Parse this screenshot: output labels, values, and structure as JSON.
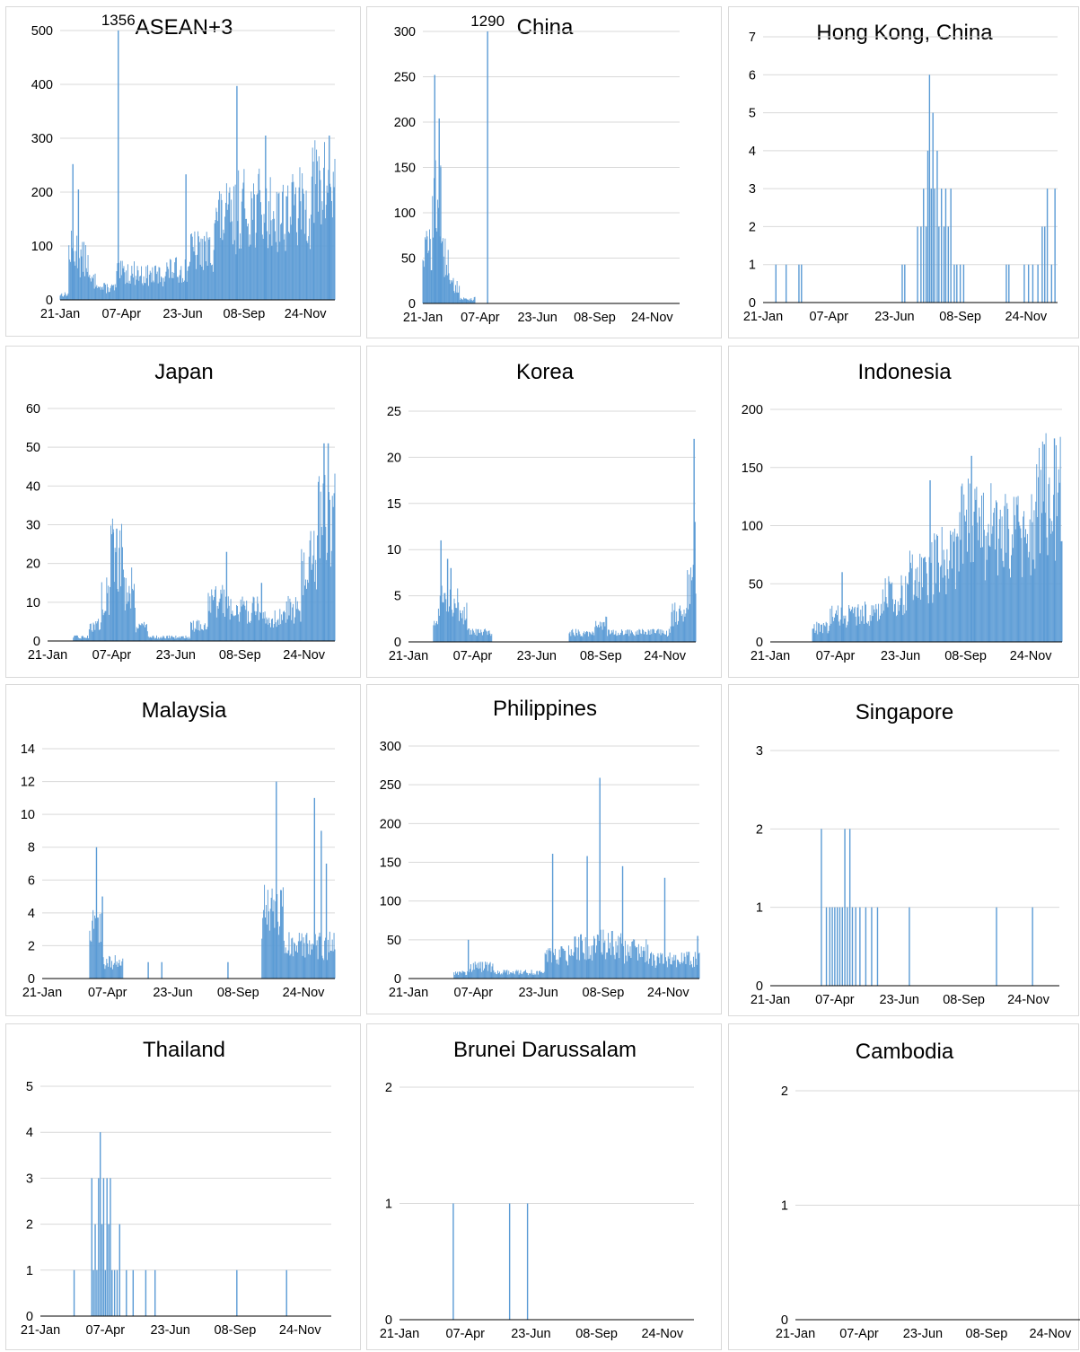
{
  "figure": {
    "bar_color": "#5b9bd5",
    "x_tick_labels": [
      "21-Jan",
      "07-Apr",
      "23-Jun",
      "08-Sep",
      "24-Nov"
    ]
  },
  "chart_data": [
    {
      "type": "bar",
      "title": "ASEAN+3",
      "x_range": [
        "21-Jan",
        "31-Dec"
      ],
      "ylim": [
        0,
        500
      ],
      "yticks": [
        0,
        100,
        200,
        300,
        400,
        500
      ],
      "annotations": [
        {
          "label": "1356",
          "x": "03-Apr",
          "note": "bar truncated at axis max"
        }
      ],
      "segments": [
        {
          "from": "21-Jan",
          "to": "31-Jan",
          "level": 10
        },
        {
          "from": "01-Feb",
          "to": "12-Feb",
          "level": 90
        },
        {
          "from": "13-Feb",
          "to": "25-Feb",
          "level": 75
        },
        {
          "from": "26-Feb",
          "to": "10-Mar",
          "level": 35
        },
        {
          "from": "11-Mar",
          "to": "31-Mar",
          "level": 22
        },
        {
          "from": "01-Apr",
          "to": "30-Apr",
          "level": 50
        },
        {
          "from": "01-May",
          "to": "31-May",
          "level": 45
        },
        {
          "from": "01-Jun",
          "to": "30-Jun",
          "level": 55
        },
        {
          "from": "01-Jul",
          "to": "31-Jul",
          "level": 90
        },
        {
          "from": "01-Aug",
          "to": "31-Aug",
          "level": 150
        },
        {
          "from": "01-Sep",
          "to": "30-Sep",
          "level": 170
        },
        {
          "from": "01-Oct",
          "to": "31-Oct",
          "level": 160
        },
        {
          "from": "01-Nov",
          "to": "30Nov",
          "level": 170
        },
        {
          "from": "01-Dec",
          "to": "31-Dec",
          "level": 210
        }
      ],
      "spikes": [
        {
          "x": "06-Feb",
          "y": 252
        },
        {
          "x": "13-Feb",
          "y": 205
        },
        {
          "x": "03-Apr",
          "y": 500
        },
        {
          "x": "27-Jun",
          "y": 233
        },
        {
          "x": "30-Aug",
          "y": 397
        },
        {
          "x": "05-Oct",
          "y": 305
        },
        {
          "x": "24-Dec",
          "y": 305
        }
      ]
    },
    {
      "type": "bar",
      "title": "China",
      "x_range": [
        "21-Jan",
        "31-Dec"
      ],
      "ylim": [
        0,
        300
      ],
      "yticks": [
        0,
        50,
        100,
        150,
        200,
        250,
        300
      ],
      "annotations": [
        {
          "label": "1290",
          "x": "17-Apr",
          "note": "bar truncated at axis max"
        }
      ],
      "segments": [
        {
          "from": "21-Jan",
          "to": "02-Feb",
          "level": 60
        },
        {
          "from": "03-Feb",
          "to": "14-Feb",
          "level": 110
        },
        {
          "from": "15-Feb",
          "to": "25-Feb",
          "level": 50
        },
        {
          "from": "26-Feb",
          "to": "10-Mar",
          "level": 20
        },
        {
          "from": "11-Mar",
          "to": "31-Mar",
          "level": 5
        }
      ],
      "spikes": [
        {
          "x": "06-Feb",
          "y": 252
        },
        {
          "x": "12-Feb",
          "y": 204
        },
        {
          "x": "14-Feb",
          "y": 150
        },
        {
          "x": "17-Apr",
          "y": 300
        }
      ]
    },
    {
      "type": "bar",
      "title": "Hong Kong, China",
      "x_range": [
        "21-Jan",
        "31-Dec"
      ],
      "ylim": [
        0,
        7
      ],
      "yticks": [
        0,
        1,
        2,
        3,
        4,
        5,
        6,
        7
      ],
      "spikes": [
        {
          "x": "05-Feb",
          "y": 1
        },
        {
          "x": "17-Feb",
          "y": 1
        },
        {
          "x": "03-Mar",
          "y": 1
        },
        {
          "x": "06-Mar",
          "y": 1
        },
        {
          "x": "02-Jul",
          "y": 1
        },
        {
          "x": "05-Jul",
          "y": 1
        },
        {
          "x": "20-Jul",
          "y": 2
        },
        {
          "x": "24-Jul",
          "y": 2
        },
        {
          "x": "27-Jul",
          "y": 3
        },
        {
          "x": "30-Jul",
          "y": 2
        },
        {
          "x": "01-Aug",
          "y": 4
        },
        {
          "x": "03-Aug",
          "y": 6
        },
        {
          "x": "05-Aug",
          "y": 3
        },
        {
          "x": "07-Aug",
          "y": 5
        },
        {
          "x": "09-Aug",
          "y": 3
        },
        {
          "x": "12-Aug",
          "y": 4
        },
        {
          "x": "14-Aug",
          "y": 2
        },
        {
          "x": "17-Aug",
          "y": 3
        },
        {
          "x": "20-Aug",
          "y": 2
        },
        {
          "x": "22-Aug",
          "y": 3
        },
        {
          "x": "25-Aug",
          "y": 2
        },
        {
          "x": "28-Aug",
          "y": 3
        },
        {
          "x": "01-Sep",
          "y": 1
        },
        {
          "x": "04-Sep",
          "y": 1
        },
        {
          "x": "08-Sep",
          "y": 1
        },
        {
          "x": "12-Sep",
          "y": 1
        },
        {
          "x": "01-Nov",
          "y": 1
        },
        {
          "x": "04-Nov",
          "y": 1
        },
        {
          "x": "22-Nov",
          "y": 1
        },
        {
          "x": "27-Nov",
          "y": 1
        },
        {
          "x": "02-Dec",
          "y": 1
        },
        {
          "x": "08-Dec",
          "y": 1
        },
        {
          "x": "13-Dec",
          "y": 2
        },
        {
          "x": "16-Dec",
          "y": 2
        },
        {
          "x": "19-Dec",
          "y": 3
        },
        {
          "x": "24-Dec",
          "y": 1
        },
        {
          "x": "28-Dec",
          "y": 3
        }
      ]
    },
    {
      "type": "bar",
      "title": "Japan",
      "x_range": [
        "21-Jan",
        "31-Dec"
      ],
      "ylim": [
        0,
        60
      ],
      "yticks": [
        0,
        10,
        20,
        30,
        40,
        50,
        60
      ],
      "segments": [
        {
          "from": "21-Feb",
          "to": "10-Mar",
          "level": 1
        },
        {
          "from": "11-Mar",
          "to": "25-Mar",
          "level": 4
        },
        {
          "from": "26-Mar",
          "to": "05-Apr",
          "level": 12
        },
        {
          "from": "06-Apr",
          "to": "20-Apr",
          "level": 22
        },
        {
          "from": "21-Apr",
          "to": "05-May",
          "level": 14
        },
        {
          "from": "06-May",
          "to": "20-May",
          "level": 4
        },
        {
          "from": "21-May",
          "to": "20-Jun",
          "level": 1
        },
        {
          "from": "21-Jun",
          "to": "10-Jul",
          "level": 1
        },
        {
          "from": "11-Jul",
          "to": "31-Jul",
          "level": 4
        },
        {
          "from": "01-Aug",
          "to": "31-Aug",
          "level": 10
        },
        {
          "from": "01-Sep",
          "to": "30-Sep",
          "level": 8
        },
        {
          "from": "01-Oct",
          "to": "31-Oct",
          "level": 6
        },
        {
          "from": "01-Nov",
          "to": "20-Nov",
          "level": 8
        },
        {
          "from": "21-Nov",
          "to": "10-Dec",
          "level": 20
        },
        {
          "from": "11-Dec",
          "to": "31-Dec",
          "level": 30
        }
      ],
      "spikes": [
        {
          "x": "09-Apr",
          "y": 28
        },
        {
          "x": "13-Apr",
          "y": 29
        },
        {
          "x": "23-Aug",
          "y": 23
        },
        {
          "x": "04-Oct",
          "y": 15
        },
        {
          "x": "18-Dec",
          "y": 51
        },
        {
          "x": "23-Dec",
          "y": 51
        }
      ]
    },
    {
      "type": "bar",
      "title": "Korea",
      "x_range": [
        "21-Jan",
        "31-Dec"
      ],
      "ylim": [
        0,
        25
      ],
      "yticks": [
        0,
        5,
        10,
        15,
        20,
        25
      ],
      "segments": [
        {
          "from": "20-Feb",
          "to": "25-Feb",
          "level": 2
        },
        {
          "from": "26-Feb",
          "to": "20-Mar",
          "level": 5
        },
        {
          "from": "21-Mar",
          "to": "31-Mar",
          "level": 3
        },
        {
          "from": "01-Apr",
          "to": "30-Apr",
          "level": 1
        },
        {
          "from": "01-Aug",
          "to": "31-Aug",
          "level": 1
        },
        {
          "from": "01-Sep",
          "to": "15-Sep",
          "level": 2
        },
        {
          "from": "16-Sep",
          "to": "30-Nov",
          "level": 1
        },
        {
          "from": "01-Dec",
          "to": "20-Dec",
          "level": 3
        },
        {
          "from": "21-Dec",
          "to": "31-Dec",
          "level": 6
        }
      ],
      "spikes": [
        {
          "x": "29-Feb",
          "y": 11
        },
        {
          "x": "08-Mar",
          "y": 9
        },
        {
          "x": "12-Mar",
          "y": 8
        },
        {
          "x": "29-Dec",
          "y": 22
        },
        {
          "x": "30-Dec",
          "y": 13
        }
      ]
    },
    {
      "type": "bar",
      "title": "Indonesia",
      "x_range": [
        "21-Jan",
        "31-Dec"
      ],
      "ylim": [
        0,
        200
      ],
      "yticks": [
        0,
        50,
        100,
        150,
        200
      ],
      "segments": [
        {
          "from": "11-Mar",
          "to": "31-Mar",
          "level": 12
        },
        {
          "from": "01-Apr",
          "to": "30-Apr",
          "level": 22
        },
        {
          "from": "01-May",
          "to": "31-May",
          "level": 25
        },
        {
          "from": "01-Jun",
          "to": "30-Jun",
          "level": 40
        },
        {
          "from": "01-Jul",
          "to": "31-Jul",
          "level": 60
        },
        {
          "from": "01-Aug",
          "to": "31-Aug",
          "level": 70
        },
        {
          "from": "01-Sep",
          "to": "30-Sep",
          "level": 100
        },
        {
          "from": "01-Oct",
          "to": "31-Oct",
          "level": 95
        },
        {
          "from": "01-Nov",
          "to": "30-Nov",
          "level": 90
        },
        {
          "from": "01-Dec",
          "to": "31-Dec",
          "level": 125
        }
      ],
      "spikes": [
        {
          "x": "15-Apr",
          "y": 60
        },
        {
          "x": "28-Jul",
          "y": 139
        },
        {
          "x": "15-Sep",
          "y": 160
        },
        {
          "x": "10-Dec",
          "y": 170
        },
        {
          "x": "22-Dec",
          "y": 175
        }
      ]
    },
    {
      "type": "bar",
      "title": "Malaysia",
      "x_range": [
        "21-Jan",
        "31-Dec"
      ],
      "ylim": [
        0,
        14
      ],
      "yticks": [
        0,
        2,
        4,
        6,
        8,
        10,
        12,
        14
      ],
      "segments": [
        {
          "from": "17-Mar",
          "to": "31-Mar",
          "level": 3
        },
        {
          "from": "01-Apr",
          "to": "25-Apr",
          "level": 1
        },
        {
          "from": "06-Oct",
          "to": "31-Oct",
          "level": 4
        },
        {
          "from": "01-Nov",
          "to": "31-Dec",
          "level": 2
        }
      ],
      "spikes": [
        {
          "x": "25-Mar",
          "y": 8
        },
        {
          "x": "01-Apr",
          "y": 5
        },
        {
          "x": "23-Oct",
          "y": 12
        },
        {
          "x": "07-Dec",
          "y": 11
        },
        {
          "x": "15-Dec",
          "y": 9
        },
        {
          "x": "21-Dec",
          "y": 7
        },
        {
          "x": "25-May",
          "y": 1
        },
        {
          "x": "10-Jun",
          "y": 1
        },
        {
          "x": "27-Aug",
          "y": 1
        }
      ]
    },
    {
      "type": "bar",
      "title": "Philippines",
      "x_range": [
        "21-Jan",
        "31-Dec"
      ],
      "ylim": [
        0,
        300
      ],
      "yticks": [
        0,
        50,
        100,
        150,
        200,
        250,
        300
      ],
      "segments": [
        {
          "from": "15-Mar",
          "to": "31-Mar",
          "level": 8
        },
        {
          "from": "01-Apr",
          "to": "30-Apr",
          "level": 15
        },
        {
          "from": "01-May",
          "to": "30-Jun",
          "level": 8
        },
        {
          "from": "01-Jul",
          "to": "31-Jul",
          "level": 30
        },
        {
          "from": "01-Aug",
          "to": "31-Aug",
          "level": 40
        },
        {
          "from": "01-Sep",
          "to": "30-Sep",
          "level": 45
        },
        {
          "from": "01-Oct",
          "to": "31-Oct",
          "level": 35
        },
        {
          "from": "01-Nov",
          "to": "31-Dec",
          "level": 25
        }
      ],
      "spikes": [
        {
          "x": "01-Apr",
          "y": 50
        },
        {
          "x": "10-Jul",
          "y": 161
        },
        {
          "x": "04-Sep",
          "y": 259
        },
        {
          "x": "20-Aug",
          "y": 158
        },
        {
          "x": "01-Oct",
          "y": 145
        },
        {
          "x": "20-Nov",
          "y": 130
        },
        {
          "x": "29-Dec",
          "y": 55
        }
      ]
    },
    {
      "type": "bar",
      "title": "Singapore",
      "x_range": [
        "21-Jan",
        "31-Dec"
      ],
      "ylim": [
        0,
        3
      ],
      "yticks": [
        0,
        1,
        2,
        3
      ],
      "spikes": [
        {
          "x": "22-Mar",
          "y": 2
        },
        {
          "x": "28-Mar",
          "y": 1
        },
        {
          "x": "01-Apr",
          "y": 1
        },
        {
          "x": "04-Apr",
          "y": 1
        },
        {
          "x": "07-Apr",
          "y": 1
        },
        {
          "x": "10-Apr",
          "y": 1
        },
        {
          "x": "13-Apr",
          "y": 1
        },
        {
          "x": "16-Apr",
          "y": 1
        },
        {
          "x": "19-Apr",
          "y": 2
        },
        {
          "x": "22-Apr",
          "y": 1
        },
        {
          "x": "25-Apr",
          "y": 2
        },
        {
          "x": "28-Apr",
          "y": 1
        },
        {
          "x": "02-May",
          "y": 1
        },
        {
          "x": "07-May",
          "y": 1
        },
        {
          "x": "14-May",
          "y": 1
        },
        {
          "x": "21-May",
          "y": 1
        },
        {
          "x": "28-May",
          "y": 1
        },
        {
          "x": "05-Jul",
          "y": 1
        },
        {
          "x": "17-Oct",
          "y": 1
        },
        {
          "x": "29-Nov",
          "y": 1
        }
      ]
    },
    {
      "type": "bar",
      "title": "Thailand",
      "x_range": [
        "21-Jan",
        "31-Dec"
      ],
      "ylim": [
        0,
        5
      ],
      "yticks": [
        0,
        1,
        2,
        3,
        4,
        5
      ],
      "spikes": [
        {
          "x": "01-Mar",
          "y": 1
        },
        {
          "x": "22-Mar",
          "y": 3
        },
        {
          "x": "24-Mar",
          "y": 1
        },
        {
          "x": "26-Mar",
          "y": 2
        },
        {
          "x": "28-Mar",
          "y": 1
        },
        {
          "x": "30-Mar",
          "y": 3
        },
        {
          "x": "01-Apr",
          "y": 4
        },
        {
          "x": "03-Apr",
          "y": 2
        },
        {
          "x": "05-Apr",
          "y": 3
        },
        {
          "x": "07-Apr",
          "y": 1
        },
        {
          "x": "09-Apr",
          "y": 3
        },
        {
          "x": "11-Apr",
          "y": 2
        },
        {
          "x": "13-Apr",
          "y": 3
        },
        {
          "x": "15-Apr",
          "y": 1
        },
        {
          "x": "18-Apr",
          "y": 1
        },
        {
          "x": "21-Apr",
          "y": 1
        },
        {
          "x": "24-Apr",
          "y": 2
        },
        {
          "x": "02-May",
          "y": 1
        },
        {
          "x": "10-May",
          "y": 1
        },
        {
          "x": "25-May",
          "y": 1
        },
        {
          "x": "05-Jun",
          "y": 1
        },
        {
          "x": "10-Sep",
          "y": 1
        },
        {
          "x": "08-Nov",
          "y": 1
        }
      ]
    },
    {
      "type": "bar",
      "title": "Brunei Darussalam",
      "x_range": [
        "21-Jan",
        "31-Dec"
      ],
      "ylim": [
        0,
        2
      ],
      "yticks": [
        0,
        1,
        2
      ],
      "spikes": [
        {
          "x": "24-Mar",
          "y": 1
        },
        {
          "x": "29-May",
          "y": 1
        },
        {
          "x": "19-Jun",
          "y": 1
        }
      ]
    },
    {
      "type": "bar",
      "title": "Cambodia",
      "x_range": [
        "21-Jan",
        "31-Dec"
      ],
      "ylim": [
        0,
        2
      ],
      "yticks": [
        0,
        1,
        2
      ],
      "spikes": []
    }
  ]
}
